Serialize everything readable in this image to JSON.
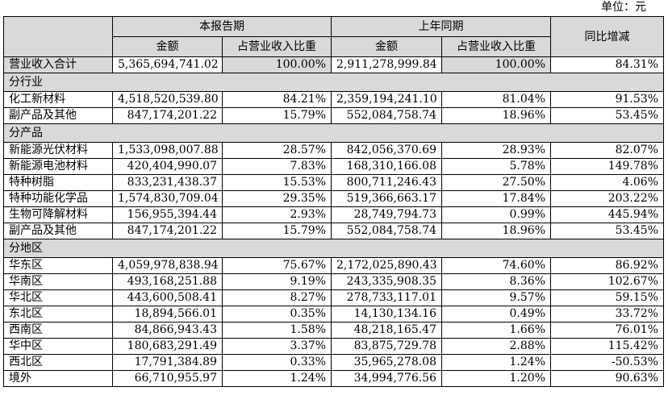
{
  "unit_label": "单位：元",
  "header": {
    "current_period": "本报告期",
    "prior_period": "上年同期",
    "yoy": "同比增减",
    "amount": "金额",
    "share": "占营业收入比重"
  },
  "total": {
    "label": "营业收入合计",
    "cur_amount": "5,365,694,741.02",
    "cur_share": "100.00%",
    "prior_amount": "2,911,278,999.84",
    "prior_share": "100.00%",
    "yoy": "84.31%"
  },
  "sections": [
    {
      "title": "分行业",
      "rows": [
        [
          "化工新材料",
          "4,518,520,539.80",
          "84.21%",
          "2,359,194,241.10",
          "81.04%",
          "91.53%"
        ],
        [
          "副产品及其他",
          "847,174,201.22",
          "15.79%",
          "552,084,758.74",
          "18.96%",
          "53.45%"
        ]
      ]
    },
    {
      "title": "分产品",
      "rows": [
        [
          "新能源光伏材料",
          "1,533,098,007.88",
          "28.57%",
          "842,056,370.69",
          "28.93%",
          "82.07%"
        ],
        [
          "新能源电池材料",
          "420,404,990.07",
          "7.83%",
          "168,310,166.08",
          "5.78%",
          "149.78%"
        ],
        [
          "特种树脂",
          "833,231,438.37",
          "15.53%",
          "800,711,246.43",
          "27.50%",
          "4.06%"
        ],
        [
          "特种功能化学品",
          "1,574,830,709.04",
          "29.35%",
          "519,366,663.17",
          "17.84%",
          "203.22%"
        ],
        [
          "生物可降解材料",
          "156,955,394.44",
          "2.93%",
          "28,749,794.73",
          "0.99%",
          "445.94%"
        ],
        [
          "副产品及其他",
          "847,174,201.22",
          "15.79%",
          "552,084,758.74",
          "18.96%",
          "53.45%"
        ]
      ]
    },
    {
      "title": "分地区",
      "rows": [
        [
          "华东区",
          "4,059,978,838.94",
          "75.67%",
          "2,172,025,890.43",
          "74.60%",
          "86.92%"
        ],
        [
          "华南区",
          "493,168,251.88",
          "9.19%",
          "243,335,908.35",
          "8.36%",
          "102.67%"
        ],
        [
          "华北区",
          "443,600,508.41",
          "8.27%",
          "278,733,117.01",
          "9.57%",
          "59.15%"
        ],
        [
          "东北区",
          "18,894,566.01",
          "0.35%",
          "14,130,134.16",
          "0.49%",
          "33.72%"
        ],
        [
          "西南区",
          "84,866,943.43",
          "1.58%",
          "48,218,165.47",
          "1.66%",
          "76.01%"
        ],
        [
          "华中区",
          "180,683,291.49",
          "3.37%",
          "83,875,729.78",
          "2.88%",
          "115.42%"
        ],
        [
          "西北区",
          "17,791,384.89",
          "0.33%",
          "35,965,278.08",
          "1.24%",
          "-50.53%"
        ],
        [
          "境外",
          "66,710,955.97",
          "1.24%",
          "34,994,776.56",
          "1.20%",
          "90.63%"
        ]
      ]
    }
  ]
}
